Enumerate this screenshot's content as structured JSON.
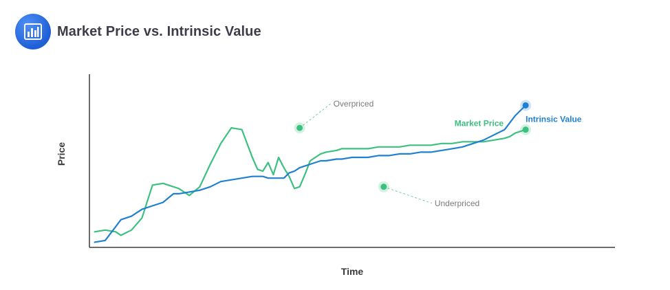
{
  "header": {
    "title": "Market Price vs. Intrinsic Value",
    "icon": "bar-chart-icon"
  },
  "colors": {
    "market": "#3cc07f",
    "intrinsic": "#1f7fd0",
    "axis": "#3a3a3a",
    "annotation": "#7a7a7a",
    "leader": "#6fcf9e",
    "logo": "#2f6fe4"
  },
  "chart_data": {
    "type": "line",
    "title": "Market Price vs. Intrinsic Value",
    "xlabel": "Time",
    "ylabel": "Price",
    "xlim": [
      0,
      100
    ],
    "ylim": [
      0,
      100
    ],
    "grid": false,
    "series": [
      {
        "name": "Market Price",
        "x": [
          1,
          3,
          5,
          6,
          8,
          10,
          12,
          14,
          16,
          17,
          19,
          21,
          23,
          25,
          27,
          29,
          31,
          32,
          33,
          34,
          35,
          36,
          37,
          38,
          39,
          40,
          41,
          42,
          43,
          44,
          45,
          47,
          48,
          50,
          53,
          55,
          57,
          59,
          61,
          63,
          65,
          67,
          69,
          71,
          73,
          75,
          77,
          79,
          80,
          81,
          82,
          83
        ],
        "values": [
          9,
          10,
          9,
          7,
          10,
          17,
          36,
          37,
          35,
          34,
          30,
          35,
          48,
          60,
          69,
          68,
          52,
          45,
          44,
          49,
          42,
          52,
          46,
          41,
          34,
          35,
          42,
          50,
          52,
          54,
          55,
          56,
          57,
          57,
          57,
          58,
          58,
          58,
          59,
          59,
          59,
          60,
          60,
          61,
          61,
          61,
          62,
          63,
          64,
          66,
          67,
          68
        ]
      },
      {
        "name": "Intrinsic Value",
        "x": [
          1,
          3,
          5,
          6,
          8,
          10,
          12,
          14,
          16,
          17,
          19,
          21,
          23,
          25,
          27,
          29,
          31,
          32,
          33,
          34,
          35,
          36,
          37,
          38,
          39,
          40,
          41,
          42,
          43,
          44,
          45,
          47,
          48,
          50,
          53,
          55,
          57,
          59,
          61,
          63,
          65,
          67,
          69,
          71,
          73,
          75,
          77,
          79,
          80,
          81,
          82,
          83
        ],
        "values": [
          3,
          4,
          12,
          16,
          18,
          22,
          24,
          26,
          31,
          31,
          32,
          33,
          35,
          38,
          39,
          40,
          41,
          41,
          41,
          40,
          40,
          40,
          40,
          43,
          44,
          46,
          47,
          48,
          49,
          50,
          50,
          51,
          51,
          52,
          52,
          53,
          53,
          54,
          54,
          55,
          55,
          56,
          57,
          58,
          60,
          62,
          65,
          68,
          72,
          76,
          79,
          82
        ]
      }
    ],
    "annotations": [
      {
        "label": "Overpriced",
        "x": 40,
        "y": 69
      },
      {
        "label": "Underpriced",
        "x": 56,
        "y": 35
      }
    ]
  }
}
